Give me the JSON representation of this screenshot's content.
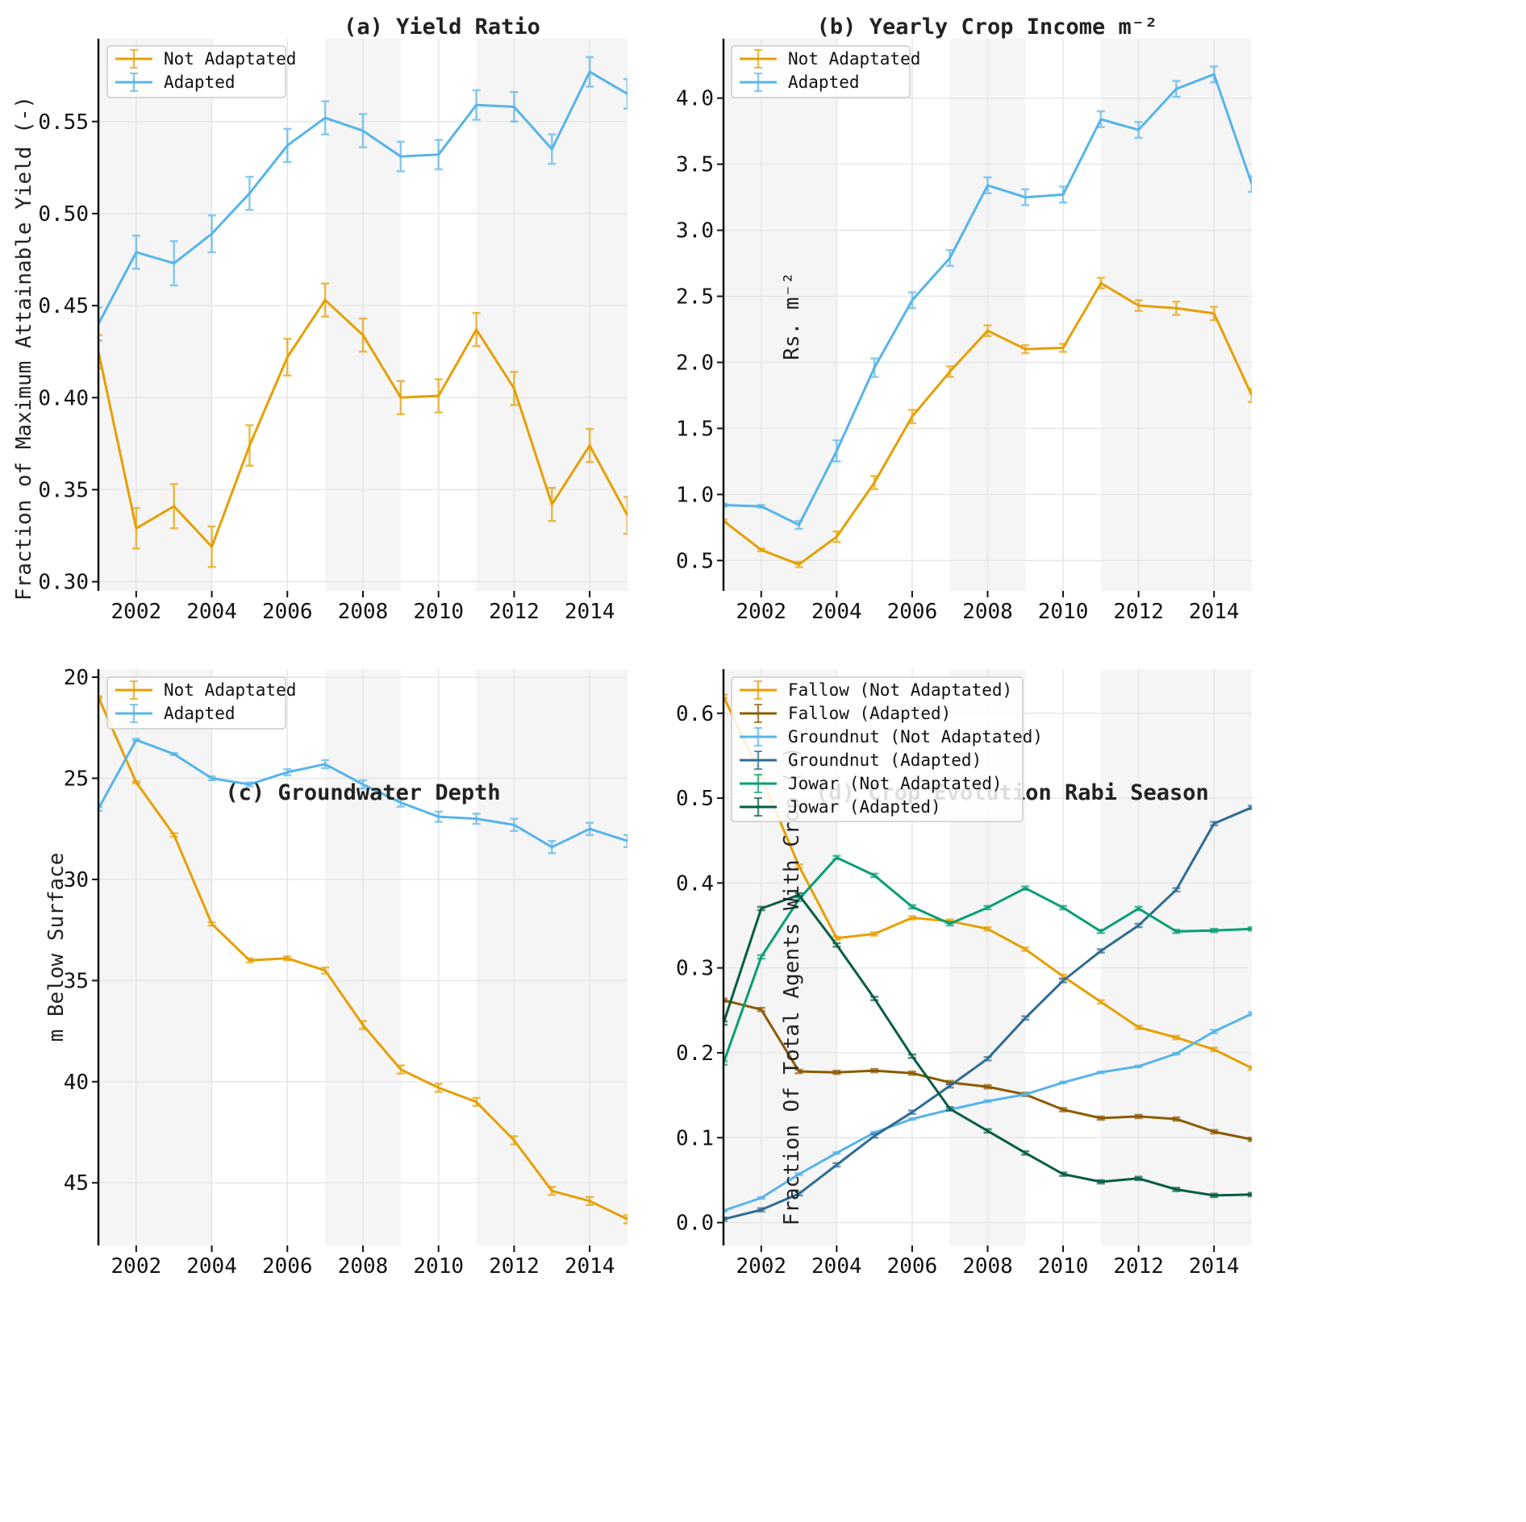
{
  "figure": {
    "background_color": "#ffffff",
    "shade_color": "#f5f5f5",
    "grid_color": "#e6e6e6",
    "shaded_year_ranges": [
      [
        2001,
        2004
      ],
      [
        2007,
        2009
      ],
      [
        2011,
        2015
      ]
    ]
  },
  "chart_data": [
    {
      "id": "a",
      "type": "line",
      "title": "(a) Yield Ratio",
      "xlabel": "",
      "ylabel": "Fraction of Maximum Attainable Yield (-)",
      "x": [
        2001,
        2002,
        2003,
        2004,
        2005,
        2006,
        2007,
        2008,
        2009,
        2010,
        2011,
        2012,
        2013,
        2014,
        2015
      ],
      "xlim": [
        2001,
        2015
      ],
      "ylim": [
        0.295,
        0.595
      ],
      "inverted_y": false,
      "xticks": [
        2002,
        2004,
        2006,
        2008,
        2010,
        2012,
        2014
      ],
      "xtick_labels": [
        "2002",
        "2004",
        "2006",
        "2008",
        "2010",
        "2012",
        "2014"
      ],
      "yticks": [
        0.3,
        0.35,
        0.4,
        0.45,
        0.5,
        0.55
      ],
      "ytick_labels": [
        "0.30",
        "0.35",
        "0.40",
        "0.45",
        "0.50",
        "0.55"
      ],
      "grid": true,
      "legend_position": "top-left",
      "series": [
        {
          "name": "Not Adaptated",
          "color": "#e69f00",
          "values": [
            0.425,
            0.329,
            0.341,
            0.319,
            0.374,
            0.422,
            0.453,
            0.434,
            0.4,
            0.401,
            0.437,
            0.405,
            0.342,
            0.374,
            0.336
          ],
          "errors": [
            0.009,
            0.011,
            0.012,
            0.011,
            0.011,
            0.01,
            0.009,
            0.009,
            0.009,
            0.009,
            0.009,
            0.009,
            0.009,
            0.009,
            0.01
          ]
        },
        {
          "name": "Adapted",
          "color": "#56b4e9",
          "values": [
            0.44,
            0.479,
            0.473,
            0.489,
            0.511,
            0.537,
            0.552,
            0.545,
            0.531,
            0.532,
            0.559,
            0.558,
            0.535,
            0.577,
            0.565
          ],
          "errors": [
            0.009,
            0.009,
            0.012,
            0.01,
            0.009,
            0.009,
            0.009,
            0.009,
            0.008,
            0.008,
            0.008,
            0.008,
            0.008,
            0.008,
            0.008
          ]
        }
      ]
    },
    {
      "id": "b",
      "type": "line",
      "title": "(b) Yearly Crop Income m⁻²",
      "xlabel": "",
      "ylabel": "Rs. m⁻²",
      "x": [
        2001,
        2002,
        2003,
        2004,
        2005,
        2006,
        2007,
        2008,
        2009,
        2010,
        2011,
        2012,
        2013,
        2014,
        2015
      ],
      "xlim": [
        2001,
        2015
      ],
      "ylim": [
        0.27,
        4.45
      ],
      "inverted_y": false,
      "xticks": [
        2002,
        2004,
        2006,
        2008,
        2010,
        2012,
        2014
      ],
      "xtick_labels": [
        "2002",
        "2004",
        "2006",
        "2008",
        "2010",
        "2012",
        "2014"
      ],
      "yticks": [
        0.5,
        1.0,
        1.5,
        2.0,
        2.5,
        3.0,
        3.5,
        4.0
      ],
      "ytick_labels": [
        "0.5",
        "1.0",
        "1.5",
        "2.0",
        "2.5",
        "3.0",
        "3.5",
        "4.0"
      ],
      "grid": true,
      "legend_position": "top-left",
      "series": [
        {
          "name": "Not Adaptated",
          "color": "#e69f00",
          "values": [
            0.8,
            0.58,
            0.47,
            0.68,
            1.09,
            1.59,
            1.93,
            2.24,
            2.1,
            2.11,
            2.6,
            2.43,
            2.41,
            2.37,
            1.75
          ],
          "errors": [
            0.01,
            0.01,
            0.02,
            0.04,
            0.05,
            0.05,
            0.04,
            0.04,
            0.03,
            0.03,
            0.04,
            0.04,
            0.05,
            0.05,
            0.05
          ]
        },
        {
          "name": "Adapted",
          "color": "#56b4e9",
          "values": [
            0.92,
            0.91,
            0.77,
            1.33,
            1.96,
            2.47,
            2.79,
            3.34,
            3.25,
            3.27,
            3.84,
            3.76,
            4.07,
            4.18,
            3.35
          ],
          "errors": [
            0.01,
            0.01,
            0.03,
            0.08,
            0.07,
            0.06,
            0.06,
            0.06,
            0.06,
            0.06,
            0.06,
            0.06,
            0.06,
            0.06,
            0.06
          ]
        }
      ]
    },
    {
      "id": "c",
      "type": "line",
      "title": "(c) Groundwater Depth",
      "xlabel": "",
      "ylabel": "m Below Surface",
      "x": [
        2001,
        2002,
        2003,
        2004,
        2005,
        2006,
        2007,
        2008,
        2009,
        2010,
        2011,
        2012,
        2013,
        2014,
        2015
      ],
      "xlim": [
        2001,
        2015
      ],
      "ylim": [
        48.1,
        19.6
      ],
      "inverted_y": true,
      "xticks": [
        2002,
        2004,
        2006,
        2008,
        2010,
        2012,
        2014
      ],
      "xtick_labels": [
        "2002",
        "2004",
        "2006",
        "2008",
        "2010",
        "2012",
        "2014"
      ],
      "yticks": [
        20,
        25,
        30,
        35,
        40,
        45
      ],
      "ytick_labels": [
        "20",
        "25",
        "30",
        "35",
        "40",
        "45"
      ],
      "grid": true,
      "legend_position": "top-left",
      "series": [
        {
          "name": "Not Adaptated",
          "color": "#e69f00",
          "values": [
            21.0,
            25.2,
            27.8,
            32.2,
            34.0,
            33.9,
            34.5,
            37.2,
            39.4,
            40.3,
            41.0,
            42.9,
            45.4,
            45.9,
            46.8
          ],
          "errors": [
            0.05,
            0.05,
            0.08,
            0.08,
            0.1,
            0.1,
            0.15,
            0.2,
            0.2,
            0.2,
            0.2,
            0.2,
            0.2,
            0.2,
            0.2
          ]
        },
        {
          "name": "Adapted",
          "color": "#56b4e9",
          "values": [
            26.5,
            23.1,
            23.8,
            25.0,
            25.3,
            24.7,
            24.3,
            25.3,
            26.2,
            26.9,
            27.0,
            27.3,
            28.4,
            27.5,
            28.1
          ],
          "errors": [
            0.1,
            0.05,
            0.05,
            0.1,
            0.1,
            0.15,
            0.2,
            0.2,
            0.2,
            0.25,
            0.25,
            0.3,
            0.3,
            0.3,
            0.3
          ]
        }
      ]
    },
    {
      "id": "d",
      "type": "line",
      "title": "(d) Crop Evolution Rabi Season",
      "xlabel": "",
      "ylabel": "Fraction Of Total Agents With Crop (-)",
      "x": [
        2001,
        2002,
        2003,
        2004,
        2005,
        2006,
        2007,
        2008,
        2009,
        2010,
        2011,
        2012,
        2013,
        2014,
        2015
      ],
      "xlim": [
        2001,
        2015
      ],
      "ylim": [
        -0.027,
        0.652
      ],
      "inverted_y": false,
      "xticks": [
        2002,
        2004,
        2006,
        2008,
        2010,
        2012,
        2014
      ],
      "xtick_labels": [
        "2002",
        "2004",
        "2006",
        "2008",
        "2010",
        "2012",
        "2014"
      ],
      "yticks": [
        0.0,
        0.1,
        0.2,
        0.3,
        0.4,
        0.5,
        0.6
      ],
      "ytick_labels": [
        "0.0",
        "0.1",
        "0.2",
        "0.3",
        "0.4",
        "0.5",
        "0.6"
      ],
      "grid": true,
      "legend_position": "top-left",
      "series": [
        {
          "name": "Fallow (Not Adaptated)",
          "color": "#e69f00",
          "values": [
            0.62,
            0.525,
            0.42,
            0.335,
            0.34,
            0.359,
            0.355,
            0.346,
            0.322,
            0.29,
            0.26,
            0.23,
            0.218,
            0.204,
            0.182
          ],
          "errors": [
            0.002,
            0.002,
            0.002,
            0.002,
            0.002,
            0.002,
            0.002,
            0.002,
            0.002,
            0.002,
            0.002,
            0.002,
            0.002,
            0.002,
            0.002
          ]
        },
        {
          "name": "Fallow (Adapted)",
          "color": "#8c5a00",
          "values": [
            0.262,
            0.251,
            0.178,
            0.177,
            0.179,
            0.176,
            0.165,
            0.16,
            0.151,
            0.133,
            0.123,
            0.125,
            0.122,
            0.107,
            0.098
          ],
          "errors": [
            0.002,
            0.002,
            0.002,
            0.002,
            0.002,
            0.002,
            0.002,
            0.002,
            0.002,
            0.002,
            0.002,
            0.002,
            0.002,
            0.002,
            0.002
          ]
        },
        {
          "name": "Groundnut (Not Adaptated)",
          "color": "#56b4e9",
          "values": [
            0.014,
            0.029,
            0.057,
            0.082,
            0.106,
            0.122,
            0.133,
            0.143,
            0.151,
            0.165,
            0.177,
            0.184,
            0.199,
            0.225,
            0.246
          ],
          "errors": [
            0.001,
            0.001,
            0.001,
            0.001,
            0.001,
            0.001,
            0.001,
            0.001,
            0.001,
            0.001,
            0.001,
            0.001,
            0.001,
            0.002,
            0.002
          ]
        },
        {
          "name": "Groundnut (Adapted)",
          "color": "#2f6b92",
          "values": [
            0.004,
            0.015,
            0.034,
            0.068,
            0.102,
            0.13,
            0.161,
            0.193,
            0.241,
            0.285,
            0.32,
            0.35,
            0.392,
            0.47,
            0.489
          ],
          "errors": [
            0.002,
            0.002,
            0.002,
            0.002,
            0.002,
            0.002,
            0.002,
            0.002,
            0.002,
            0.002,
            0.002,
            0.002,
            0.002,
            0.002,
            0.002
          ]
        },
        {
          "name": "Jowar (Not Adaptated)",
          "color": "#069e73",
          "values": [
            0.188,
            0.313,
            0.381,
            0.43,
            0.409,
            0.372,
            0.352,
            0.371,
            0.394,
            0.371,
            0.343,
            0.37,
            0.343,
            0.344,
            0.346
          ],
          "errors": [
            0.002,
            0.002,
            0.002,
            0.002,
            0.002,
            0.002,
            0.002,
            0.002,
            0.002,
            0.002,
            0.002,
            0.002,
            0.002,
            0.002,
            0.002
          ]
        },
        {
          "name": "Jowar (Adapted)",
          "color": "#075c45",
          "values": [
            0.235,
            0.37,
            0.386,
            0.327,
            0.264,
            0.196,
            0.134,
            0.108,
            0.082,
            0.057,
            0.048,
            0.052,
            0.039,
            0.032,
            0.033
          ],
          "errors": [
            0.002,
            0.002,
            0.002,
            0.002,
            0.002,
            0.002,
            0.002,
            0.002,
            0.002,
            0.002,
            0.002,
            0.002,
            0.002,
            0.002,
            0.002
          ]
        }
      ]
    }
  ]
}
